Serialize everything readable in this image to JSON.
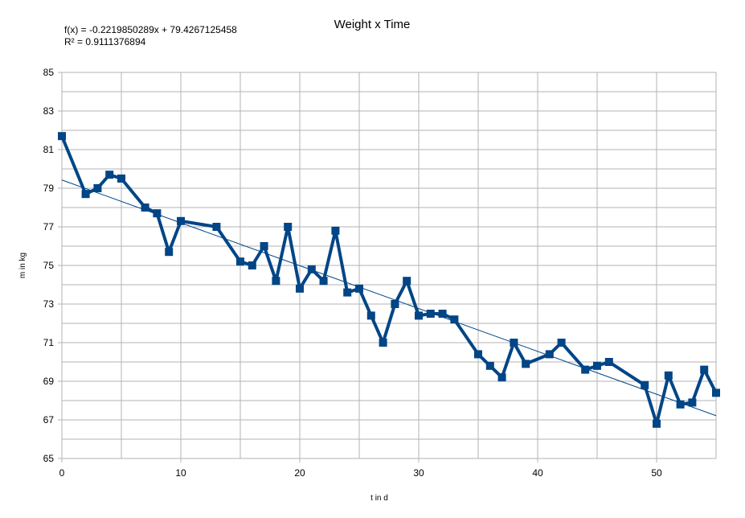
{
  "chart_data": {
    "type": "line",
    "title": "Weight x Time",
    "xlabel": "t in d",
    "ylabel": "m in kg",
    "xlim": [
      0,
      55
    ],
    "ylim": [
      65,
      85
    ],
    "x_ticks": [
      0,
      10,
      20,
      30,
      40,
      50
    ],
    "x_tick_labels": [
      "0",
      "10",
      "20",
      "30",
      "40",
      "50"
    ],
    "y_ticks": [
      65,
      67,
      69,
      71,
      73,
      75,
      77,
      79,
      81,
      83,
      85
    ],
    "y_tick_labels": [
      "65",
      "67",
      "69",
      "71",
      "73",
      "75",
      "77",
      "79",
      "81",
      "83",
      "85"
    ],
    "grid": true,
    "series": [
      {
        "color": "#004586",
        "marker": "square",
        "x": [
          0,
          2,
          3,
          4,
          5,
          7,
          8,
          9,
          10,
          13,
          15,
          16,
          17,
          18,
          19,
          20,
          21,
          22,
          23,
          24,
          25,
          26,
          27,
          28,
          29,
          30,
          31,
          32,
          33,
          35,
          36,
          37,
          38,
          39,
          41,
          42,
          44,
          45,
          46,
          49,
          50,
          51,
          52,
          53,
          54,
          55
        ],
        "y": [
          81.7,
          78.7,
          79.0,
          79.7,
          79.5,
          78.0,
          77.7,
          75.7,
          77.3,
          77.0,
          75.2,
          75.0,
          76.0,
          74.2,
          77.0,
          73.8,
          74.8,
          74.2,
          76.8,
          73.6,
          73.8,
          72.4,
          71.0,
          73.0,
          74.2,
          72.4,
          72.5,
          72.5,
          72.2,
          70.4,
          69.8,
          69.2,
          71.0,
          69.9,
          70.4,
          71.0,
          69.6,
          69.8,
          70.0,
          68.8,
          66.8,
          69.3,
          67.8,
          67.9,
          69.6,
          68.4
        ]
      }
    ],
    "trendline": {
      "type": "linear",
      "slope": -0.2219850289,
      "intercept": 79.4267125458,
      "color": "#004586",
      "equation_text": "f(x) = -0.2219850289x + 79.4267125458",
      "r2_text": "R² = 0.9111376894"
    }
  }
}
